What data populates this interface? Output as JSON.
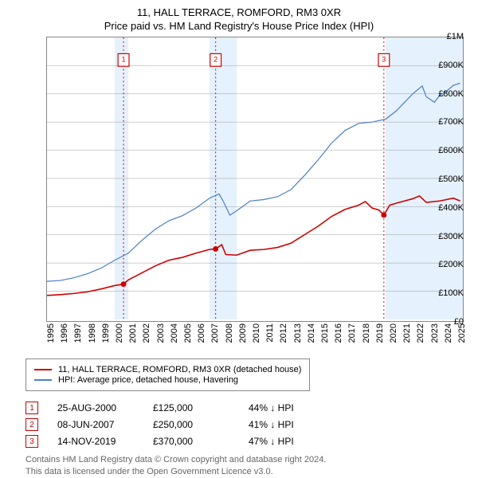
{
  "title": "11, HALL TERRACE, ROMFORD, RM3 0XR",
  "subtitle": "Price paid vs. HM Land Registry's House Price Index (HPI)",
  "chart": {
    "type": "line",
    "x_range": [
      1995,
      2025.7
    ],
    "y_range": [
      0,
      1000000
    ],
    "y_ticks": [
      0,
      100000,
      200000,
      300000,
      400000,
      500000,
      600000,
      700000,
      800000,
      900000,
      1000000
    ],
    "y_tick_labels": [
      "£0",
      "£100K",
      "£200K",
      "£300K",
      "£400K",
      "£500K",
      "£600K",
      "£700K",
      "£800K",
      "£900K",
      "£1M"
    ],
    "x_ticks": [
      1995,
      1996,
      1997,
      1998,
      1999,
      2000,
      2001,
      2002,
      2003,
      2004,
      2005,
      2006,
      2007,
      2008,
      2009,
      2010,
      2011,
      2012,
      2013,
      2014,
      2015,
      2016,
      2017,
      2018,
      2019,
      2020,
      2021,
      2022,
      2023,
      2024,
      2025
    ],
    "background_color": "#ffffff",
    "shaded_regions": [
      {
        "from": 2000,
        "to": 2001,
        "color": "#e1eefb"
      },
      {
        "from": 2007,
        "to": 2009,
        "color": "#e1eefb"
      },
      {
        "from": 2020,
        "to": 2025.7,
        "color": "#e1eefb"
      }
    ],
    "series": [
      {
        "name": "11, HALL TERRACE, ROMFORD, RM3 0XR (detached house)",
        "color": "#cc0000",
        "line_width": 1.6,
        "data": [
          [
            1995,
            85000
          ],
          [
            1996,
            88000
          ],
          [
            1997,
            92000
          ],
          [
            1998,
            98000
          ],
          [
            1999,
            108000
          ],
          [
            2000,
            120000
          ],
          [
            2000.65,
            125000
          ],
          [
            2001,
            140000
          ],
          [
            2002,
            165000
          ],
          [
            2003,
            190000
          ],
          [
            2004,
            210000
          ],
          [
            2005,
            220000
          ],
          [
            2006,
            235000
          ],
          [
            2007,
            248000
          ],
          [
            2007.45,
            250000
          ],
          [
            2007.9,
            265000
          ],
          [
            2008.2,
            230000
          ],
          [
            2009,
            228000
          ],
          [
            2010,
            245000
          ],
          [
            2011,
            248000
          ],
          [
            2012,
            255000
          ],
          [
            2013,
            270000
          ],
          [
            2014,
            300000
          ],
          [
            2015,
            330000
          ],
          [
            2016,
            365000
          ],
          [
            2017,
            390000
          ],
          [
            2018,
            405000
          ],
          [
            2018.5,
            418000
          ],
          [
            2019,
            395000
          ],
          [
            2019.5,
            388000
          ],
          [
            2019.87,
            370000
          ],
          [
            2020.3,
            405000
          ],
          [
            2021,
            415000
          ],
          [
            2022,
            428000
          ],
          [
            2022.5,
            438000
          ],
          [
            2023,
            415000
          ],
          [
            2024,
            420000
          ],
          [
            2025,
            430000
          ],
          [
            2025.5,
            420000
          ]
        ]
      },
      {
        "name": "HPI: Average price, detached house, Havering",
        "color": "#4a7ec9",
        "line_width": 1.2,
        "data": [
          [
            1995,
            135000
          ],
          [
            1996,
            138000
          ],
          [
            1997,
            148000
          ],
          [
            1998,
            162000
          ],
          [
            1999,
            182000
          ],
          [
            2000,
            210000
          ],
          [
            2001,
            235000
          ],
          [
            2002,
            280000
          ],
          [
            2003,
            320000
          ],
          [
            2004,
            350000
          ],
          [
            2005,
            368000
          ],
          [
            2006,
            395000
          ],
          [
            2007,
            430000
          ],
          [
            2007.7,
            445000
          ],
          [
            2008,
            420000
          ],
          [
            2008.5,
            370000
          ],
          [
            2009,
            385000
          ],
          [
            2010,
            420000
          ],
          [
            2011,
            425000
          ],
          [
            2012,
            435000
          ],
          [
            2013,
            460000
          ],
          [
            2014,
            510000
          ],
          [
            2015,
            565000
          ],
          [
            2016,
            625000
          ],
          [
            2017,
            670000
          ],
          [
            2018,
            695000
          ],
          [
            2019,
            700000
          ],
          [
            2020,
            710000
          ],
          [
            2020.8,
            740000
          ],
          [
            2021.5,
            775000
          ],
          [
            2022,
            800000
          ],
          [
            2022.7,
            828000
          ],
          [
            2023,
            790000
          ],
          [
            2023.6,
            770000
          ],
          [
            2024,
            795000
          ],
          [
            2024.5,
            810000
          ],
          [
            2025,
            830000
          ],
          [
            2025.5,
            838000
          ]
        ]
      }
    ],
    "sale_points": [
      {
        "x": 2000.65,
        "y": 125000,
        "label": "1",
        "color": "#cc0000"
      },
      {
        "x": 2007.45,
        "y": 250000,
        "label": "2",
        "color": "#cc0000"
      },
      {
        "x": 2019.87,
        "y": 370000,
        "label": "3",
        "color": "#cc0000"
      }
    ],
    "flag_y": 920000
  },
  "legend": [
    {
      "color": "#cc0000",
      "label": "11, HALL TERRACE, ROMFORD, RM3 0XR (detached house)"
    },
    {
      "color": "#4a7ec9",
      "label": "HPI: Average price, detached house, Havering"
    }
  ],
  "markers": [
    {
      "n": "1",
      "color": "#cc0000",
      "date": "25-AUG-2000",
      "price": "£125,000",
      "diff": "44% ↓ HPI"
    },
    {
      "n": "2",
      "color": "#cc0000",
      "date": "08-JUN-2007",
      "price": "£250,000",
      "diff": "41% ↓ HPI"
    },
    {
      "n": "3",
      "color": "#cc0000",
      "date": "14-NOV-2019",
      "price": "£370,000",
      "diff": "47% ↓ HPI"
    }
  ],
  "footer_line1": "Contains HM Land Registry data © Crown copyright and database right 2024.",
  "footer_line2": "This data is licensed under the Open Government Licence v3.0."
}
